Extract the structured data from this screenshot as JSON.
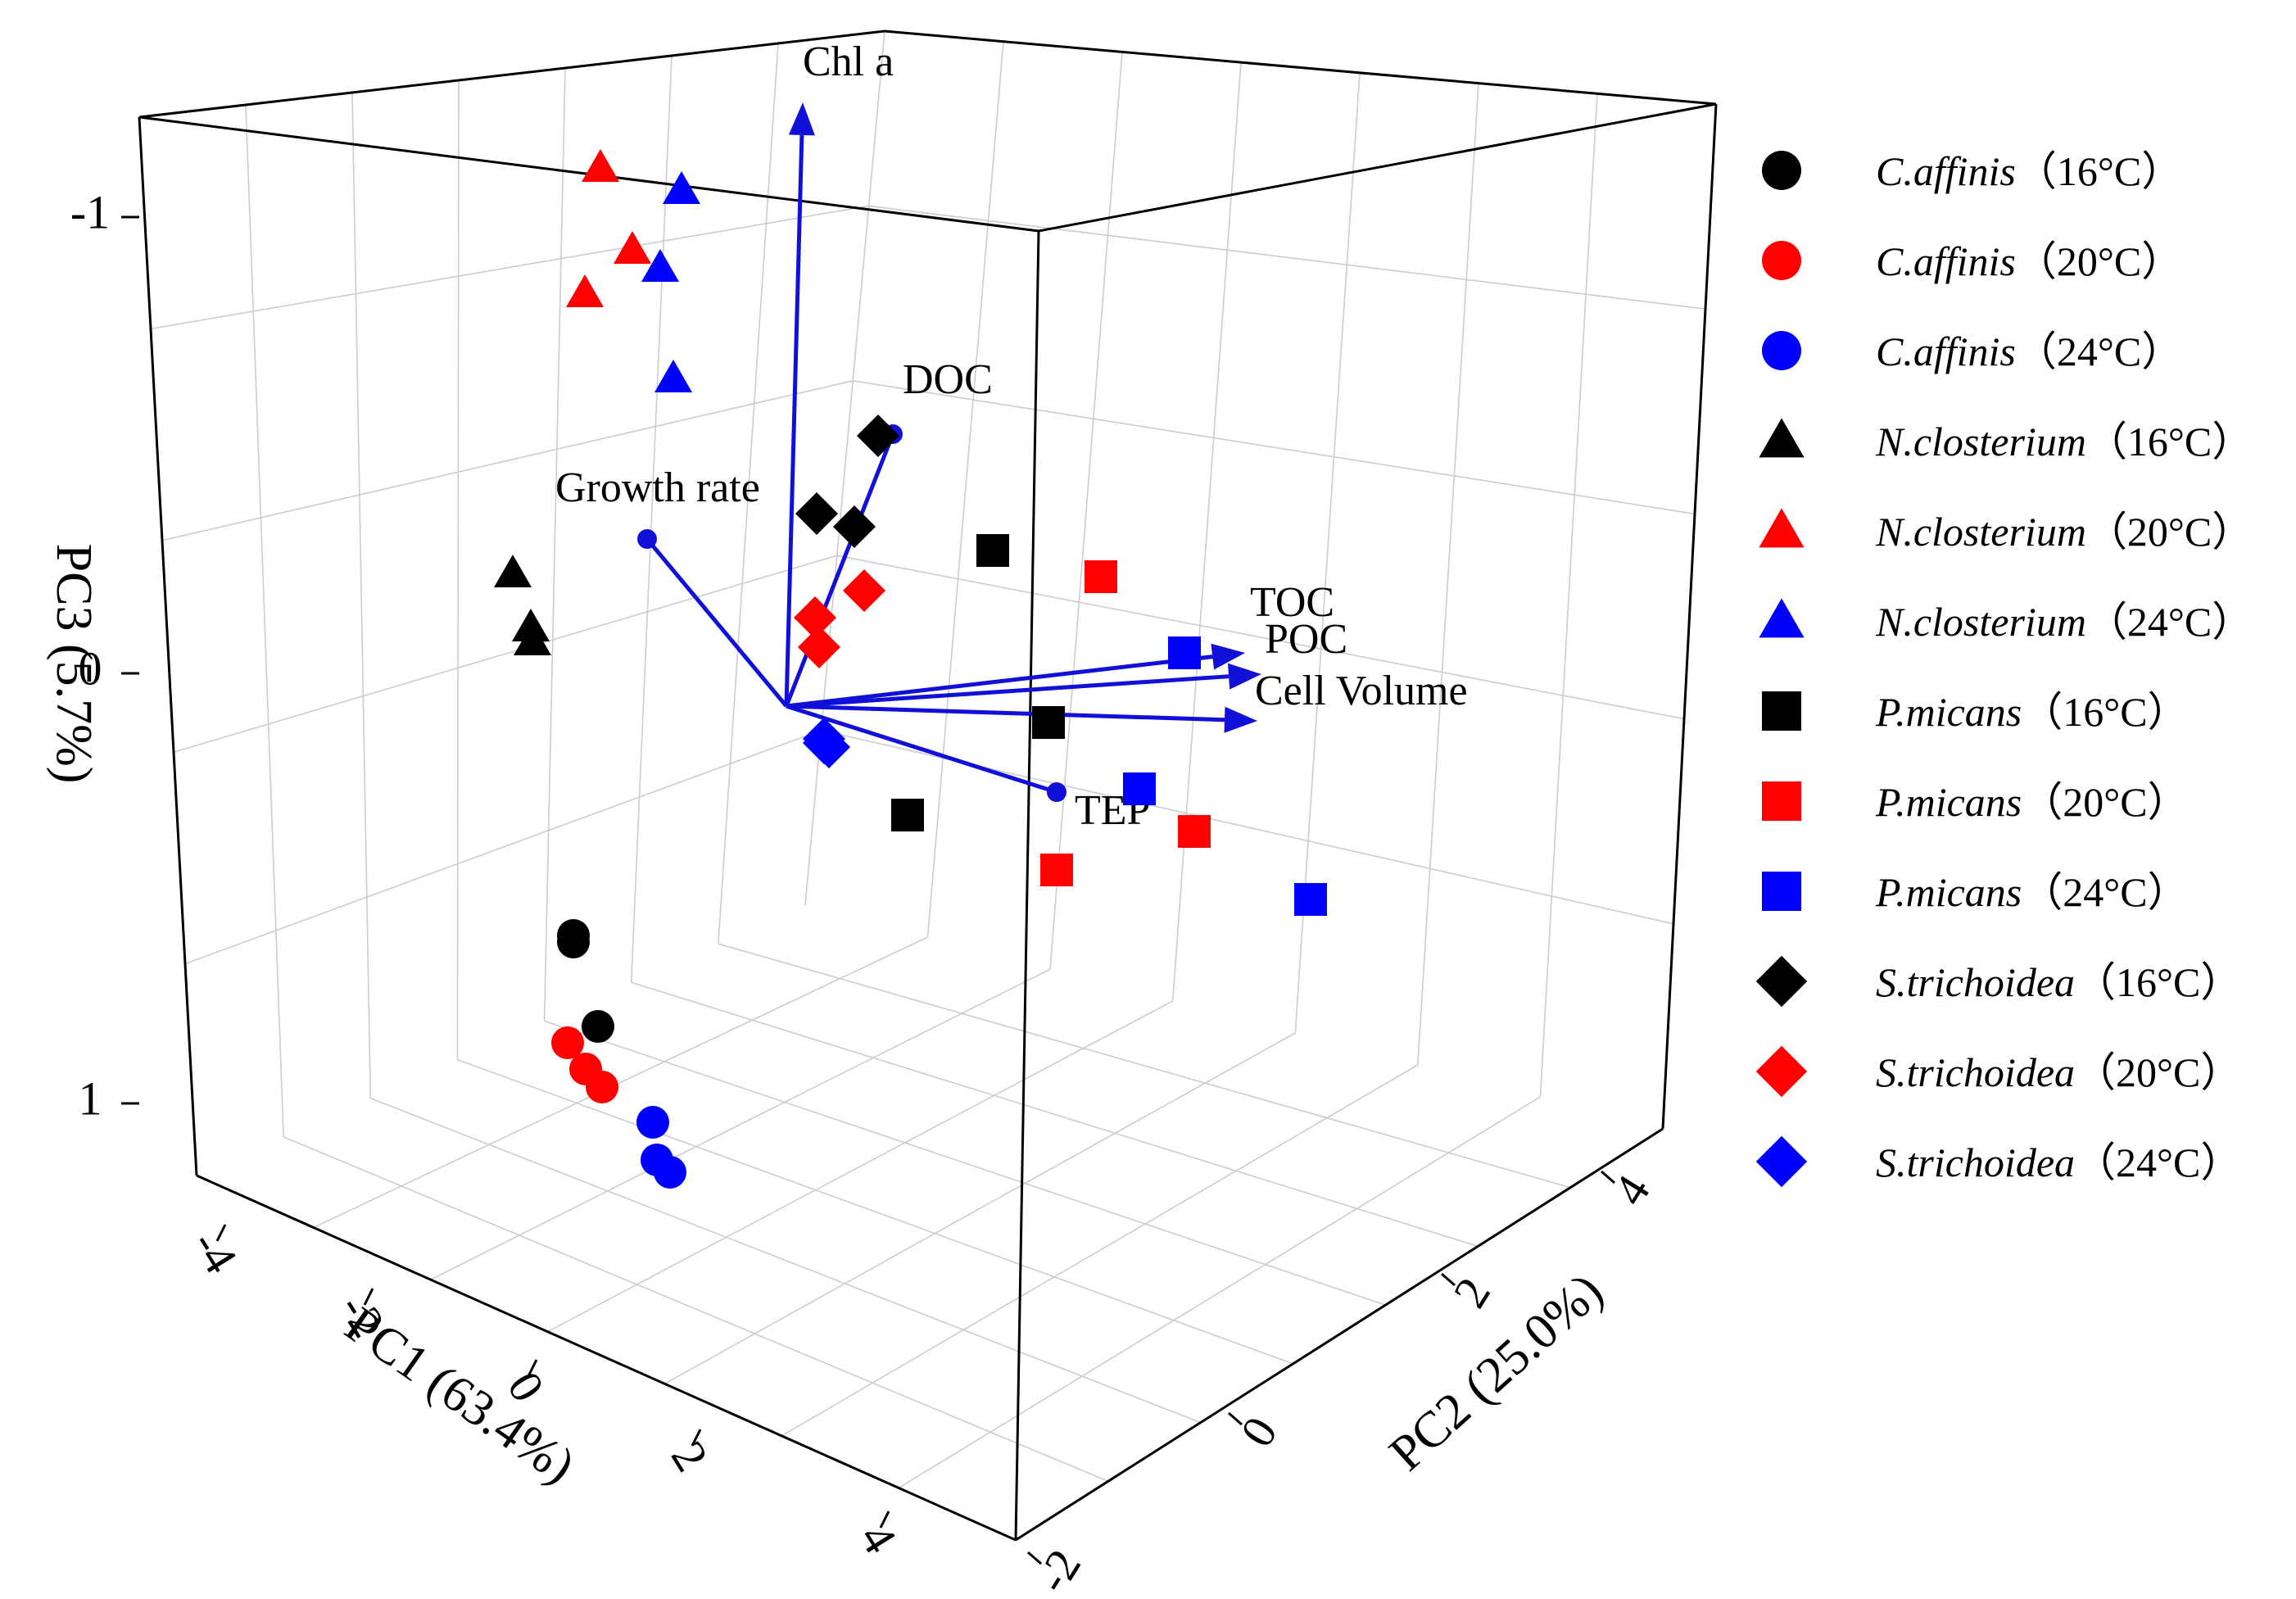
{
  "chart_data": {
    "type": "scatter",
    "subtype": "3d-pca-biplot",
    "axes": {
      "x": {
        "label": "PC1 (63.4%)",
        "ticks": [
          "-4",
          "-2",
          "0",
          "2",
          "4"
        ]
      },
      "y": {
        "label": "PC2 (25.0%)",
        "ticks": [
          "-2",
          "0",
          "2",
          "4"
        ]
      },
      "z": {
        "label": "PC3 (5.7%)",
        "ticks": [
          "-1",
          "0",
          "1"
        ]
      }
    },
    "vectors": [
      {
        "name": "Chl a",
        "end": "arrow"
      },
      {
        "name": "DOC",
        "end": "dot"
      },
      {
        "name": "Growth rate",
        "end": "dot"
      },
      {
        "name": "TOC",
        "end": "arrow"
      },
      {
        "name": "POC",
        "end": "arrow"
      },
      {
        "name": "Cell Volume",
        "end": "arrow"
      },
      {
        "name": "TEP",
        "end": "dot"
      }
    ],
    "series": [
      {
        "species": "C.affinis",
        "temp": "（16°C）",
        "marker": "circle",
        "color": "#000000"
      },
      {
        "species": "C.affinis",
        "temp": "（20°C）",
        "marker": "circle",
        "color": "#ff0000"
      },
      {
        "species": "C.affinis",
        "temp": "（24°C）",
        "marker": "circle",
        "color": "#0000ff"
      },
      {
        "species": "N.closterium",
        "temp": "（16°C）",
        "marker": "triangle",
        "color": "#000000"
      },
      {
        "species": "N.closterium",
        "temp": "（20°C）",
        "marker": "triangle",
        "color": "#ff0000"
      },
      {
        "species": "N.closterium",
        "temp": "（24°C）",
        "marker": "triangle",
        "color": "#0000ff"
      },
      {
        "species": "P.micans",
        "temp": "（16°C）",
        "marker": "square",
        "color": "#000000"
      },
      {
        "species": "P.micans",
        "temp": "（20°C）",
        "marker": "square",
        "color": "#ff0000"
      },
      {
        "species": "P.micans",
        "temp": "（24°C）",
        "marker": "square",
        "color": "#0000ff"
      },
      {
        "species": "S.trichoidea",
        "temp": "（16°C）",
        "marker": "diamond",
        "color": "#000000"
      },
      {
        "species": "S.trichoidea",
        "temp": "（20°C）",
        "marker": "diamond",
        "color": "#ff0000"
      },
      {
        "species": "S.trichoidea",
        "temp": "（24°C）",
        "marker": "diamond",
        "color": "#0000ff"
      }
    ]
  }
}
